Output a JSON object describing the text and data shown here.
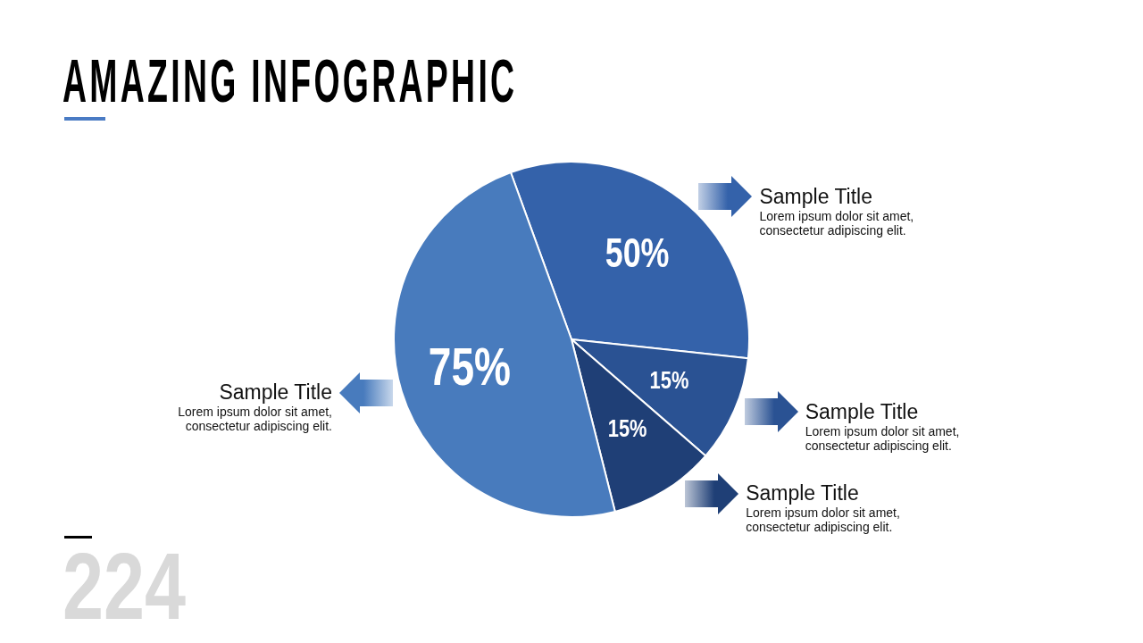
{
  "chart_data": {
    "type": "pie",
    "title": "AMAZING INFOGRAPHIC",
    "categories": [
      "Sample Title",
      "Sample Title",
      "Sample Title",
      "Sample Title"
    ],
    "values": [
      50,
      15,
      15,
      75
    ],
    "colors": [
      "#3462aa",
      "#2a5293",
      "#1f3f76",
      "#487bbd"
    ],
    "value_labels": [
      "50%",
      "15%",
      "15%",
      "75%"
    ],
    "annotations": [
      "Lorem ipsum dolor sit amet, consectetur adipiscing elit.",
      "Lorem ipsum dolor sit amet, consectetur adipiscing elit.",
      "Lorem ipsum dolor sit amet, consectetur adipiscing elit.",
      "Lorem ipsum dolor sit amet, consectetur adipiscing elit.",
      "224"
    ]
  }
}
